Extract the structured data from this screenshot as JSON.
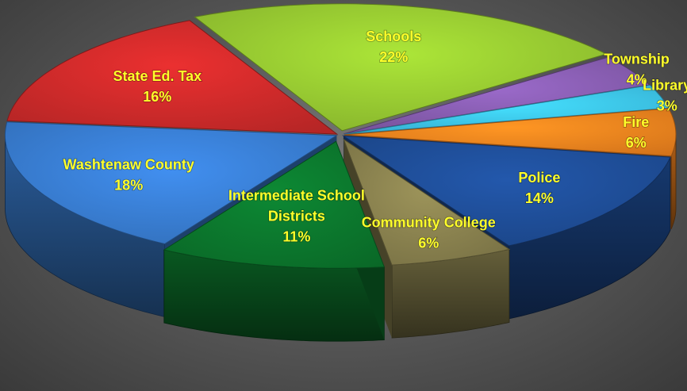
{
  "chart_data": {
    "type": "pie",
    "title": "",
    "slices": [
      {
        "name": "Schools",
        "value": 22,
        "label": "22%",
        "color": "#9acd32",
        "label_lines": [
          "Schools"
        ]
      },
      {
        "name": "Township",
        "value": 4,
        "label": "4%",
        "color": "#8a5fb4",
        "label_lines": [
          "Township"
        ]
      },
      {
        "name": "Library",
        "value": 3,
        "label": "3%",
        "color": "#3ec9f3",
        "label_lines": [
          "Library"
        ]
      },
      {
        "name": "Fire",
        "value": 6,
        "label": "6%",
        "color": "#f7861f",
        "label_lines": [
          "Fire"
        ]
      },
      {
        "name": "Police",
        "value": 14,
        "label": "14%",
        "color": "#1f4f9a",
        "label_lines": [
          "Police"
        ]
      },
      {
        "name": "Community College",
        "value": 6,
        "label": "6%",
        "color": "#8c8450",
        "label_lines": [
          "Community College"
        ]
      },
      {
        "name": "Intermediate School Districts",
        "value": 11,
        "label": "11%",
        "color": "#0c7a2e",
        "label_lines": [
          "Intermediate School",
          "Districts"
        ]
      },
      {
        "name": "Washtenaw County",
        "value": 18,
        "label": "18%",
        "color": "#3a80d6",
        "label_lines": [
          "Washtenaw County"
        ]
      },
      {
        "name": "State Ed. Tax",
        "value": 16,
        "label": "16%",
        "color": "#d22b2b",
        "label_lines": [
          "State Ed. Tax"
        ]
      }
    ],
    "label_color": "#ffff2a",
    "background_color": "#5a5a5a",
    "style": "3d-exploded"
  }
}
